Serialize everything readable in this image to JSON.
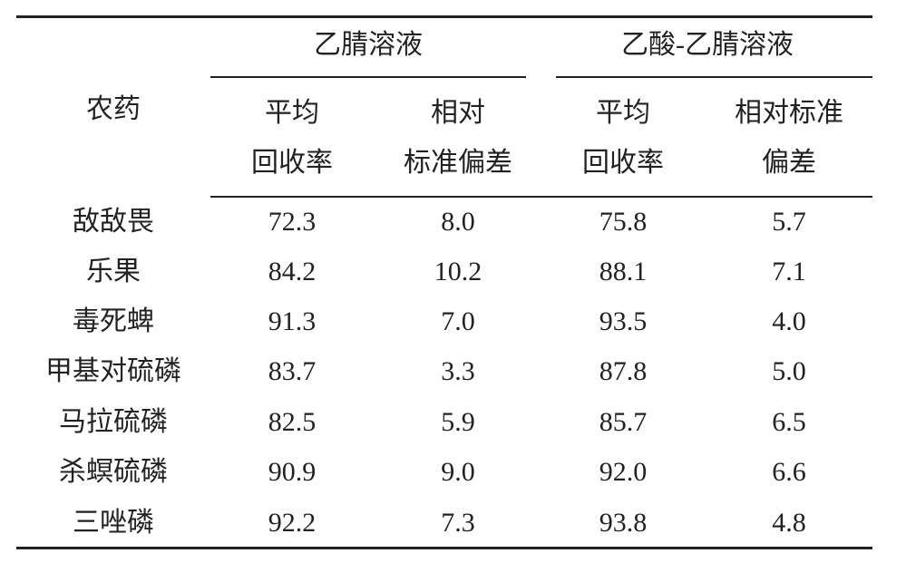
{
  "table": {
    "stub_header": "农药",
    "groups": [
      {
        "title": "乙腈溶液",
        "columns": [
          [
            "平均",
            "回收率"
          ],
          [
            "相对",
            "标准偏差"
          ]
        ]
      },
      {
        "title": "乙酸-乙腈溶液",
        "columns": [
          [
            "平均",
            "回收率"
          ],
          [
            "相对标准",
            "偏差"
          ]
        ]
      }
    ],
    "rows": [
      [
        "敌敌畏",
        "72.3",
        "8.0",
        "75.8",
        "5.7"
      ],
      [
        "乐果",
        "84.2",
        "10.2",
        "88.1",
        "7.1"
      ],
      [
        "毒死蜱",
        "91.3",
        "7.0",
        "93.5",
        "4.0"
      ],
      [
        "甲基对硫磷",
        "83.7",
        "3.3",
        "87.8",
        "5.0"
      ],
      [
        "马拉硫磷",
        "82.5",
        "5.9",
        "85.7",
        "6.5"
      ],
      [
        "杀螟硫磷",
        "90.9",
        "9.0",
        "92.0",
        "6.6"
      ],
      [
        "三唑磷",
        "92.2",
        "7.3",
        "93.8",
        "4.8"
      ]
    ]
  }
}
